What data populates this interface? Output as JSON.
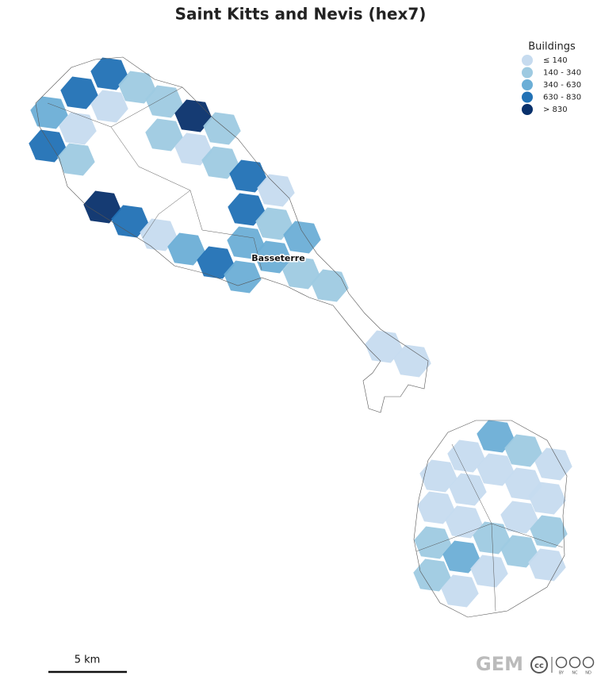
{
  "title": "Saint Kitts and Nevis (hex7)",
  "legend": {
    "title": "Buildings",
    "items": [
      {
        "label": "≤ 140",
        "color": "#c6dbef"
      },
      {
        "label": "140 - 340",
        "color": "#9ecae1"
      },
      {
        "label": "340 - 630",
        "color": "#6baed6"
      },
      {
        "label": "630 - 830",
        "color": "#2171b5"
      },
      {
        "label": "> 830",
        "color": "#08306b"
      }
    ]
  },
  "places": {
    "city": "Basseterre"
  },
  "scale_bar": {
    "label": "5 km"
  },
  "footer": {
    "logo": "GEM",
    "cc": "cc",
    "terms": [
      "BY",
      "NC",
      "ND"
    ]
  }
}
